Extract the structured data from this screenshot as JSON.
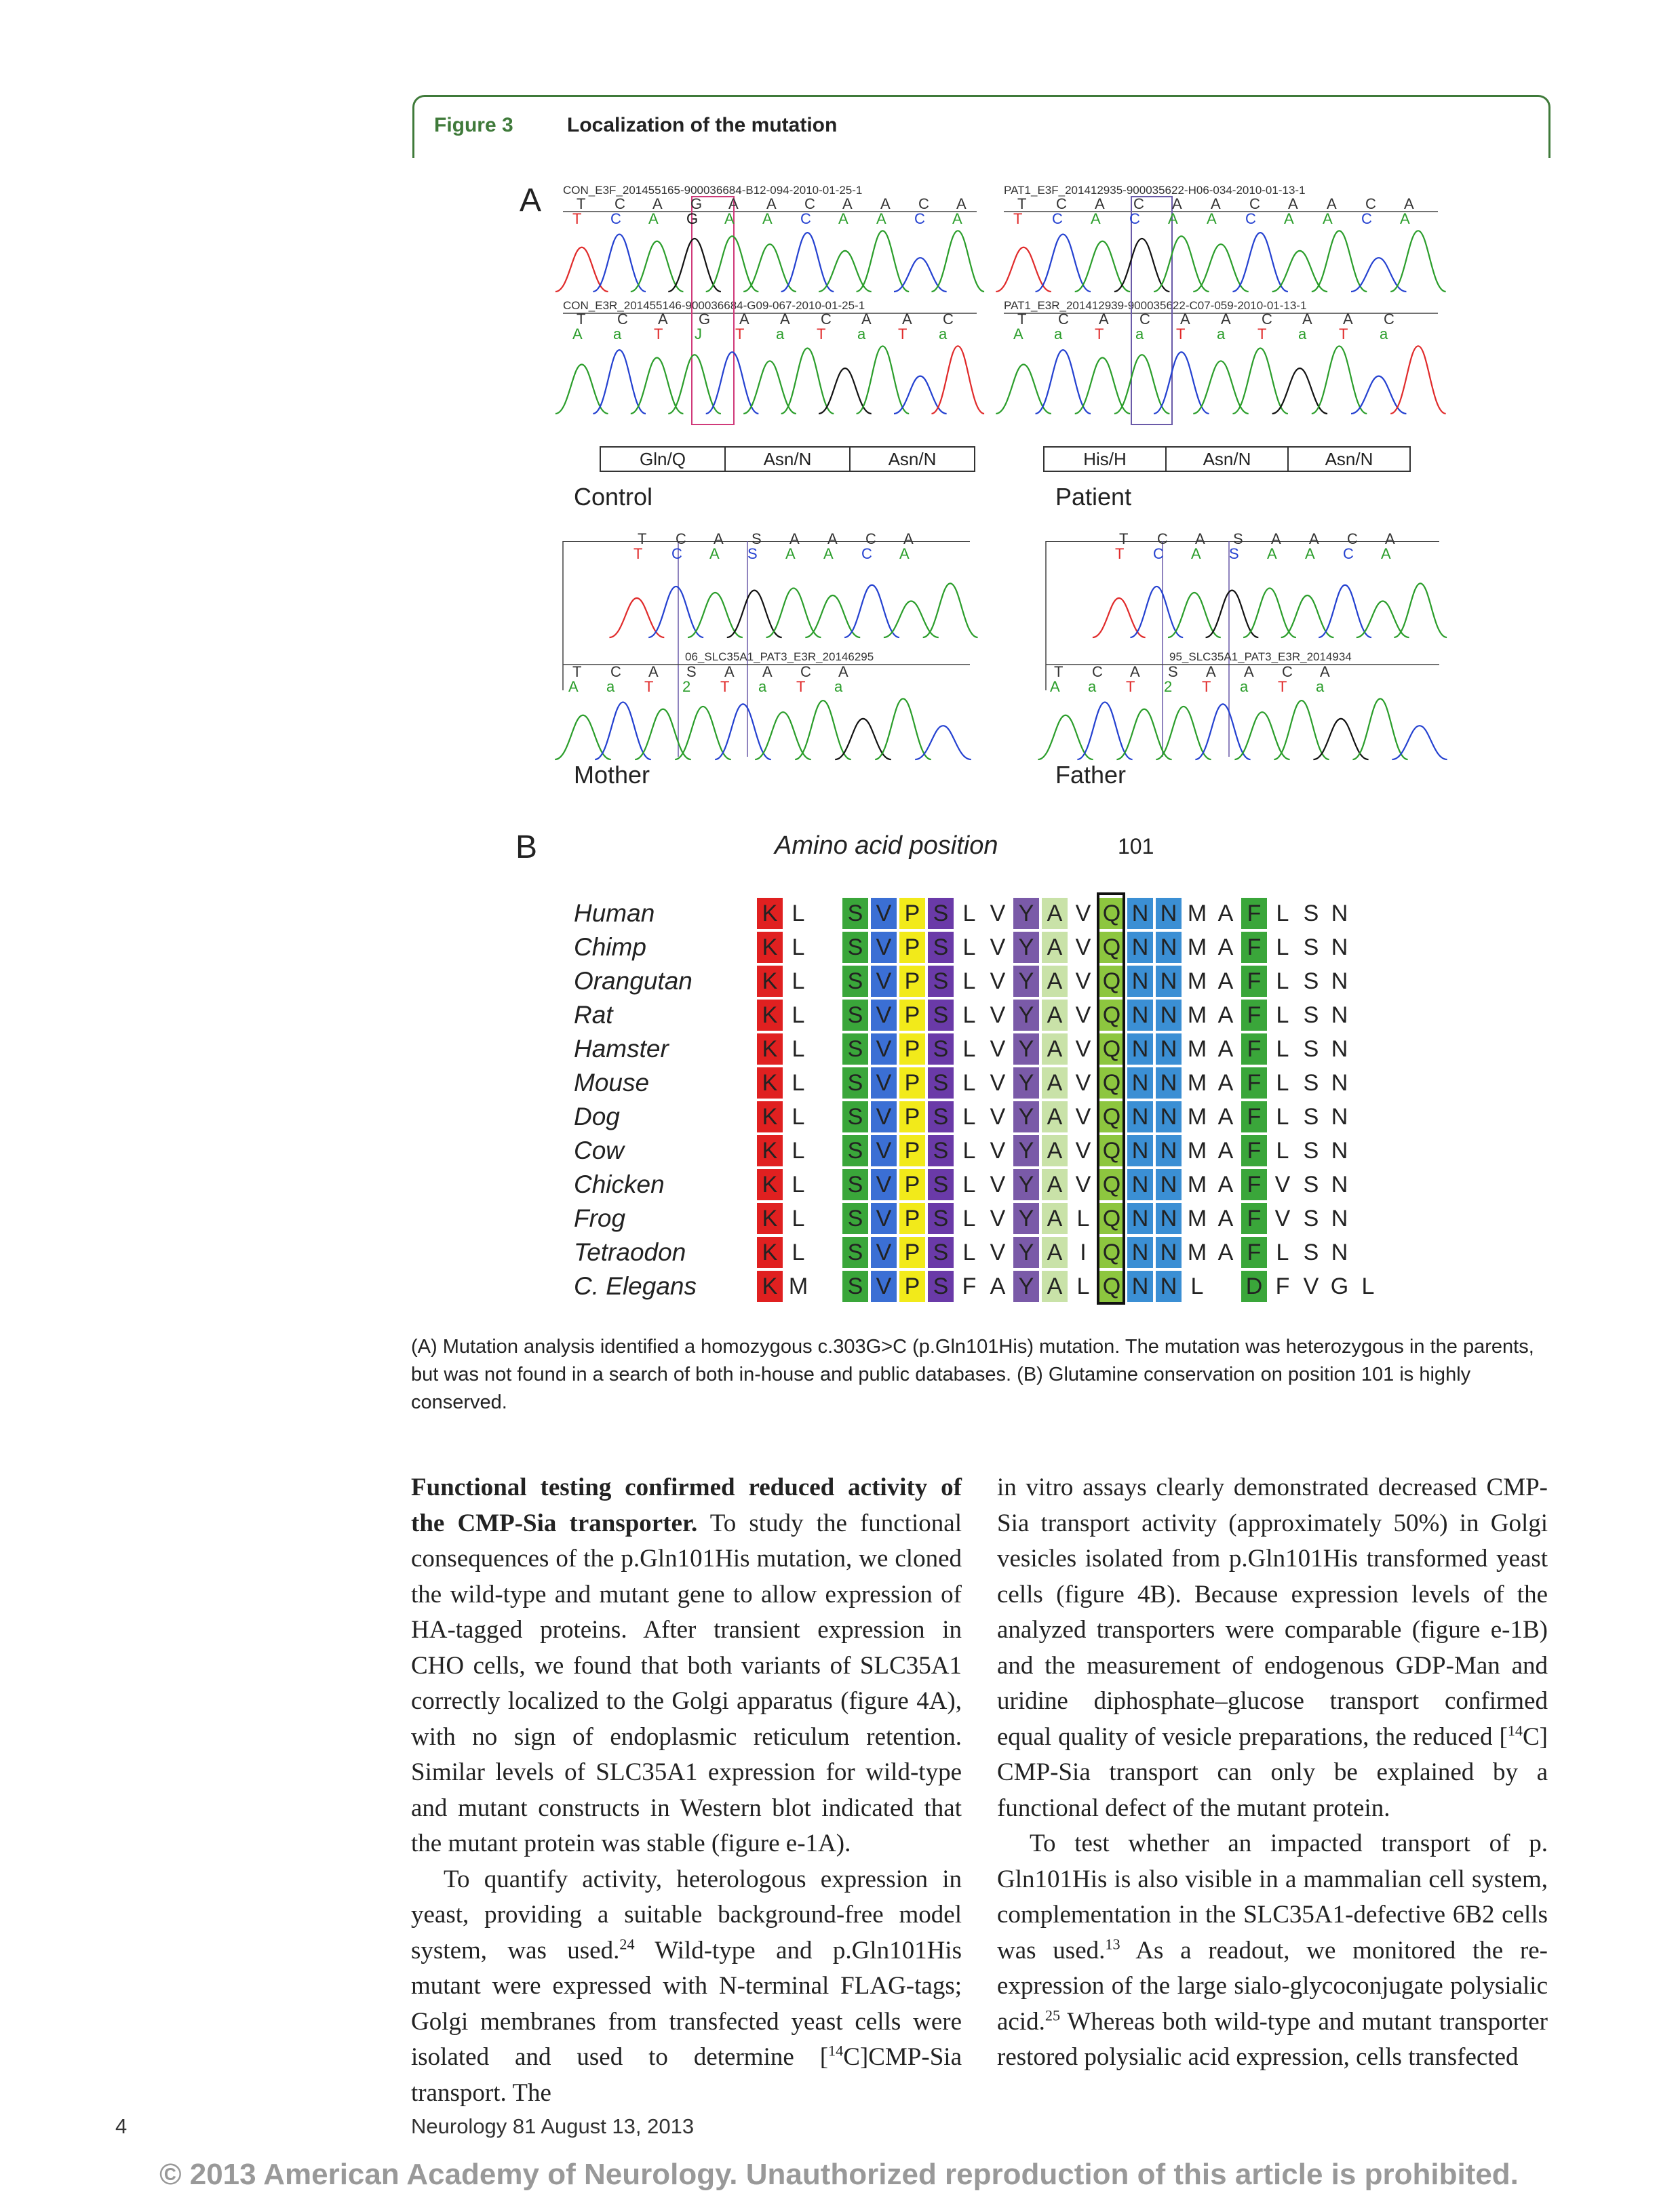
{
  "figure": {
    "label": "Figure 3",
    "title": "Localization of the mutation",
    "panel_a_letter": "A",
    "panel_b_letter": "B"
  },
  "panel_a": {
    "control": {
      "forward_label": "CON_E3F_201455165-900036684-B12-094-2010-01-25-1",
      "reverse_label": "CON_E3R_201455146-900036684-G09-067-2010-01-25-1",
      "forward_bases": [
        "T",
        "C",
        "A",
        "G",
        "A",
        "A",
        "C",
        "A",
        "A",
        "C",
        "A"
      ],
      "forward_calls": [
        "T",
        "C",
        "A",
        "G",
        "A",
        "A",
        "C",
        "A",
        "A",
        "C",
        "A"
      ],
      "reverse_bases": [
        "T",
        "C",
        "A",
        "G",
        "A",
        "A",
        "C",
        "A",
        "A",
        "C"
      ],
      "reverse_calls": [
        "A",
        "a",
        "T",
        "J",
        "T",
        "a",
        "T",
        "a",
        "T",
        "a"
      ],
      "codons": [
        "Gln/Q",
        "Asn/N",
        "Asn/N"
      ],
      "name": "Control"
    },
    "patient": {
      "forward_label": "PAT1_E3F_201412935-900035622-H06-034-2010-01-13-1",
      "reverse_label": "PAT1_E3R_201412939-900035622-C07-059-2010-01-13-1",
      "forward_bases": [
        "T",
        "C",
        "A",
        "C",
        "A",
        "A",
        "C",
        "A",
        "A",
        "C",
        "A"
      ],
      "forward_calls": [
        "T",
        "C",
        "A",
        "C",
        "A",
        "A",
        "C",
        "A",
        "A",
        "C",
        "A"
      ],
      "reverse_bases": [
        "T",
        "C",
        "A",
        "C",
        "A",
        "A",
        "C",
        "A",
        "A",
        "C"
      ],
      "reverse_calls": [
        "A",
        "a",
        "T",
        "a",
        "T",
        "a",
        "T",
        "a",
        "T",
        "a"
      ],
      "codons": [
        "His/H",
        "Asn/N",
        "Asn/N"
      ],
      "name": "Patient"
    },
    "mother": {
      "forward_bases": [
        "T",
        "C",
        "A",
        "S",
        "A",
        "A",
        "C",
        "A"
      ],
      "forward_calls": [
        "T",
        "C",
        "A",
        "S",
        "A",
        "A",
        "C",
        "A"
      ],
      "reverse_label": "06_SLC35A1_PAT3_E3R_20146295",
      "reverse_bases": [
        "T",
        "C",
        "A",
        "S",
        "A",
        "A",
        "C",
        "A"
      ],
      "reverse_calls": [
        "A",
        "a",
        "T",
        "2",
        "T",
        "a",
        "T",
        "a"
      ],
      "name": "Mother"
    },
    "father": {
      "forward_bases": [
        "T",
        "C",
        "A",
        "S",
        "A",
        "A",
        "C",
        "A"
      ],
      "forward_calls": [
        "T",
        "C",
        "A",
        "S",
        "A",
        "A",
        "C",
        "A"
      ],
      "reverse_label": "95_SLC35A1_PAT3_E3R_2014934",
      "reverse_bases": [
        "T",
        "C",
        "A",
        "S",
        "A",
        "A",
        "C",
        "A"
      ],
      "reverse_calls": [
        "A",
        "a",
        "T",
        "2",
        "T",
        "a",
        "T",
        "a"
      ],
      "name": "Father"
    }
  },
  "panel_b": {
    "axis_title": "Amino acid position",
    "position_label": "101",
    "species": [
      "Human",
      "Chimp",
      "Orangutan",
      "Rat",
      "Hamster",
      "Mouse",
      "Dog",
      "Cow",
      "Chicken",
      "Frog",
      "Tetraodon",
      "C. Elegans"
    ],
    "sequences": [
      [
        "K",
        "L",
        "",
        "S",
        "V",
        "P",
        "S",
        "L",
        "V",
        "Y",
        "A",
        "V",
        "Q",
        "N",
        "N",
        "M",
        "A",
        "F",
        "L",
        "S",
        "N"
      ],
      [
        "K",
        "L",
        "",
        "S",
        "V",
        "P",
        "S",
        "L",
        "V",
        "Y",
        "A",
        "V",
        "Q",
        "N",
        "N",
        "M",
        "A",
        "F",
        "L",
        "S",
        "N"
      ],
      [
        "K",
        "L",
        "",
        "S",
        "V",
        "P",
        "S",
        "L",
        "V",
        "Y",
        "A",
        "V",
        "Q",
        "N",
        "N",
        "M",
        "A",
        "F",
        "L",
        "S",
        "N"
      ],
      [
        "K",
        "L",
        "",
        "S",
        "V",
        "P",
        "S",
        "L",
        "V",
        "Y",
        "A",
        "V",
        "Q",
        "N",
        "N",
        "M",
        "A",
        "F",
        "L",
        "S",
        "N"
      ],
      [
        "K",
        "L",
        "",
        "S",
        "V",
        "P",
        "S",
        "L",
        "V",
        "Y",
        "A",
        "V",
        "Q",
        "N",
        "N",
        "M",
        "A",
        "F",
        "L",
        "S",
        "N"
      ],
      [
        "K",
        "L",
        "",
        "S",
        "V",
        "P",
        "S",
        "L",
        "V",
        "Y",
        "A",
        "V",
        "Q",
        "N",
        "N",
        "M",
        "A",
        "F",
        "L",
        "S",
        "N"
      ],
      [
        "K",
        "L",
        "",
        "S",
        "V",
        "P",
        "S",
        "L",
        "V",
        "Y",
        "A",
        "V",
        "Q",
        "N",
        "N",
        "M",
        "A",
        "F",
        "L",
        "S",
        "N"
      ],
      [
        "K",
        "L",
        "",
        "S",
        "V",
        "P",
        "S",
        "L",
        "V",
        "Y",
        "A",
        "V",
        "Q",
        "N",
        "N",
        "M",
        "A",
        "F",
        "L",
        "S",
        "N"
      ],
      [
        "K",
        "L",
        "",
        "S",
        "V",
        "P",
        "S",
        "L",
        "V",
        "Y",
        "A",
        "V",
        "Q",
        "N",
        "N",
        "M",
        "A",
        "F",
        "V",
        "S",
        "N"
      ],
      [
        "K",
        "L",
        "",
        "S",
        "V",
        "P",
        "S",
        "L",
        "V",
        "Y",
        "A",
        "L",
        "Q",
        "N",
        "N",
        "M",
        "A",
        "F",
        "V",
        "S",
        "N"
      ],
      [
        "K",
        "L",
        "",
        "S",
        "V",
        "P",
        "S",
        "L",
        "V",
        "Y",
        "A",
        "I",
        "Q",
        "N",
        "N",
        "M",
        "A",
        "F",
        "L",
        "S",
        "N"
      ],
      [
        "K",
        "M",
        "",
        "S",
        "V",
        "P",
        "S",
        "F",
        "A",
        "Y",
        "A",
        "L",
        "Q",
        "N",
        "N",
        "L",
        "",
        "D",
        "F",
        "V",
        "G",
        "L"
      ]
    ],
    "column_colors": [
      "#e02020",
      "",
      "",
      "#3aa63a",
      "#3b6fd4",
      "#f2ea1a",
      "#6a3aa8",
      "",
      "",
      "#7a5aa8",
      "#c9e2a8",
      "",
      "#8dc63f",
      "#3b8fd4",
      "#3b8fd4",
      "",
      "",
      "#3aa63a",
      "",
      "",
      ""
    ],
    "highlight_color": "#8dc63f"
  },
  "caption": "(A) Mutation analysis identified a homozygous c.303G>C (p.Gln101His) mutation. The mutation was heterozygous in the parents, but was not found in a search of both in-house and public databases. (B) Glutamine conservation on position 101 is highly conserved.",
  "body": {
    "left_heading": "Functional testing confirmed reduced activity of the CMP-Sia transporter.",
    "left_p1": " To study the functional consequences of the p.Gln101His mutation, we cloned the wild-type and mutant gene to allow expression of HA-tagged proteins. After transient expression in CHO cells, we found that both variants of SLC35A1 correctly localized to the Golgi apparatus (figure 4A), with no sign of endoplasmic reticulum retention. Similar levels of SLC35A1 expression for wild-type and mutant constructs in Western blot indicated that the mutant protein was stable (figure e-1A).",
    "left_p2a": "To quantify activity, heterologous expression in yeast, providing a suitable background-free model system, was used.",
    "left_p2_ref": "24",
    "left_p2b": " Wild-type and p.Gln101His mutant were expressed with N-terminal FLAG-tags; Golgi membranes from transfected yeast cells were isolated and used to determine [",
    "left_p2_sup": "14",
    "left_p2c": "C]CMP-Sia transport. The",
    "right_p1a": "in vitro assays clearly demonstrated decreased CMP-Sia transport activity (approximately 50%) in Golgi vesicles isolated from p.Gln101His transformed yeast cells (figure 4B). Because expression levels of the analyzed transporters were comparable (figure e-1B) and the measurement of endogenous GDP-Man and uridine diphosphate–glucose transport confirmed equal quality of vesicle preparations, the reduced [",
    "right_p1_sup": "14",
    "right_p1b": "C] CMP-Sia transport can only be explained by a functional defect of the mutant protein.",
    "right_p2a": "To test whether an impacted transport of p. Gln101His is also visible in a mammalian cell system, complementation in the SLC35A1-defective 6B2 cells was used.",
    "right_p2_ref1": "13",
    "right_p2b": " As a readout, we monitored the re-expression of the large sialo-glycoconjugate polysialic acid.",
    "right_p2_ref2": "25",
    "right_p2c": " Whereas both wild-type and mutant transporter restored polysialic acid expression, cells transfected"
  },
  "footer": {
    "page_number": "4",
    "journal": "Neurology 81   August 13, 2013",
    "copyright": "© 2013 American Academy of Neurology. Unauthorized reproduction of this article is prohibited."
  },
  "colors": {
    "frame_green": "#3f7a3a",
    "trace_green": "#2a9d2a",
    "trace_blue": "#2340d0",
    "trace_red": "#e02a2a",
    "trace_black": "#111111",
    "box_pink": "#d03a7a",
    "box_purple": "#6a5aa8"
  }
}
